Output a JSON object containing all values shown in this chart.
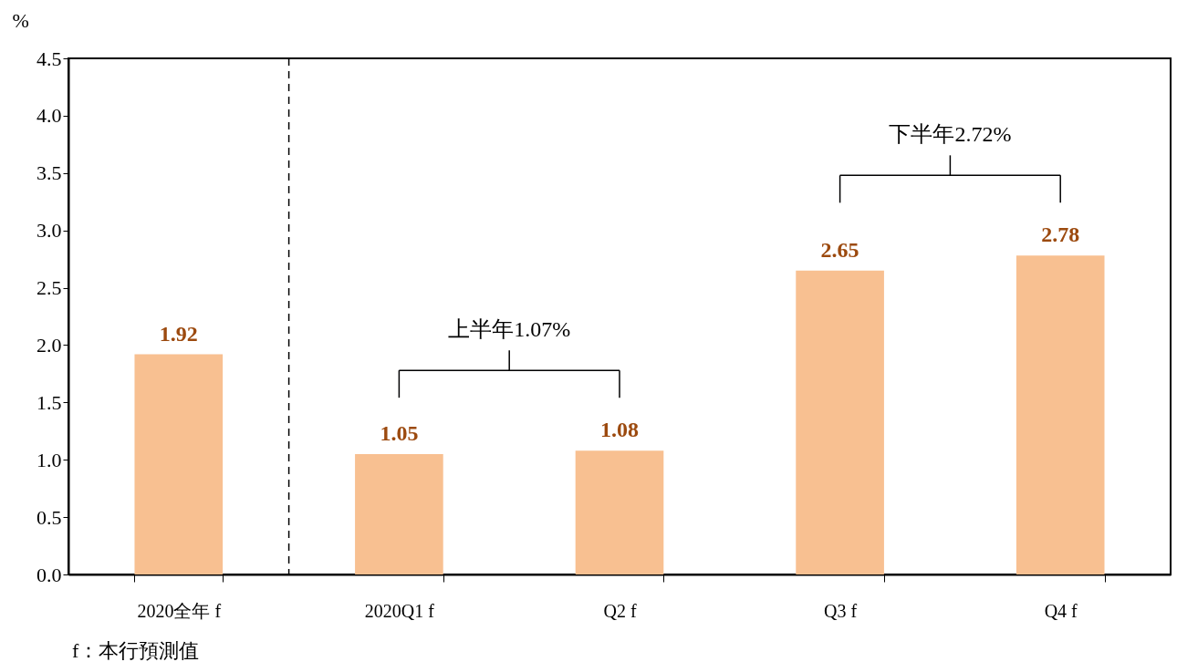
{
  "chart_data": {
    "type": "bar",
    "ylabel": "%",
    "categories": [
      "2020全年 f",
      "2020Q1 f",
      "Q2 f",
      "Q3 f",
      "Q4 f"
    ],
    "values": [
      1.92,
      1.05,
      1.08,
      2.65,
      2.78
    ],
    "color": "#f8c091",
    "data_labels": true,
    "ylim": [
      0,
      4.5
    ],
    "yticks": [
      {
        "value": 0,
        "label": "0.0"
      },
      {
        "value": 0.5,
        "label": "0.5"
      },
      {
        "value": 1,
        "label": "1.0"
      },
      {
        "value": 1.5,
        "label": "1.5"
      },
      {
        "value": 2,
        "label": "2.0"
      },
      {
        "value": 2.5,
        "label": "2.5"
      },
      {
        "value": 3,
        "label": "3.0"
      },
      {
        "value": 3.5,
        "label": "3.5"
      },
      {
        "value": 4,
        "label": "4.0"
      },
      {
        "value": 4.5,
        "label": "4.5"
      }
    ],
    "annotations": [
      "上半年1.07%",
      "下半年2.72%",
      "f：本行預測值"
    ],
    "grid": false
  }
}
